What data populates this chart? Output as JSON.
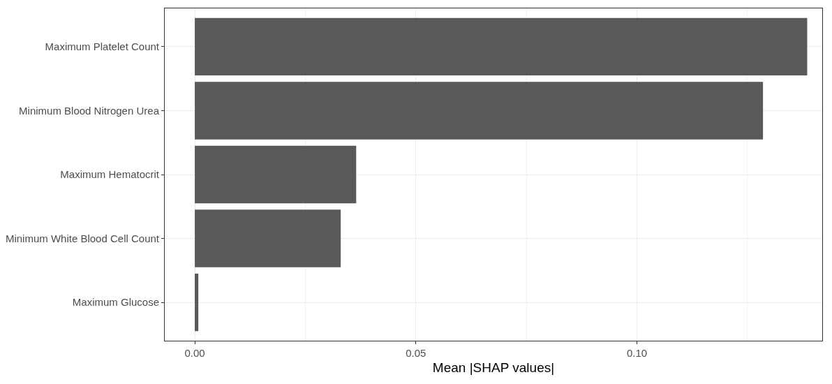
{
  "chart_data": {
    "type": "bar",
    "orientation": "horizontal",
    "xlabel": "Mean |SHAP values|",
    "categories": [
      "Maximum Platelet Count",
      "Minimum Blood Nitrogen Urea",
      "Maximum Hematocrit",
      "Minimum White Blood Cell Count",
      "Maximum Glucose"
    ],
    "values": [
      0.1385,
      0.1285,
      0.0365,
      0.033,
      0.0008
    ],
    "color": "#595959",
    "xlim": [
      -0.0068,
      0.1419
    ],
    "xticks": [
      {
        "value": 0,
        "label": "0.00"
      },
      {
        "value": 0.05,
        "label": "0.05"
      },
      {
        "value": 0.1,
        "label": "0.10"
      }
    ],
    "grid": true
  }
}
